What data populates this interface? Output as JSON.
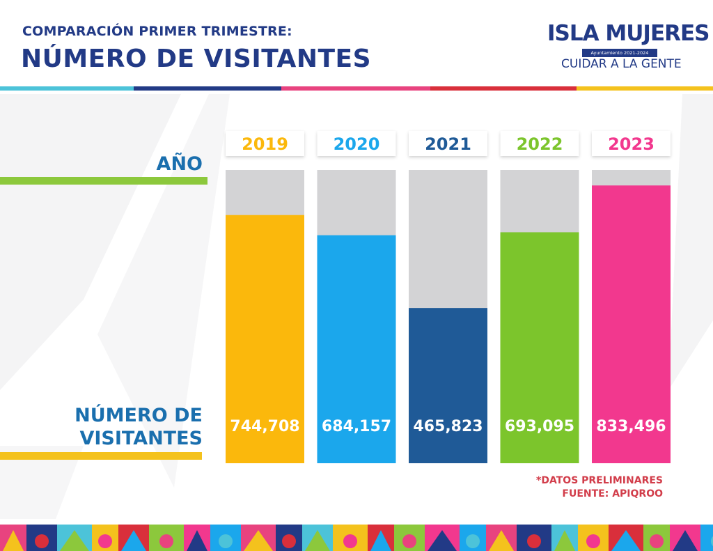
{
  "header": {
    "subtitle": "COMPARACIÓN PRIMER TRIMESTRE:",
    "title": "NÚMERO DE VISITANTES"
  },
  "logo": {
    "name": "ISLA MUJERES",
    "sub": "Ayuntamiento 2021-2024",
    "tagline": "CUIDAR A LA GENTE"
  },
  "colors": {
    "navy": "#223a86",
    "accent_blue": "#1a6fae",
    "lime": "#8cc83c",
    "gold": "#f4c21d",
    "note_red": "#d23d4a"
  },
  "labels": {
    "year_axis": "AÑO",
    "value_axis_line1": "NÚMERO DE",
    "value_axis_line2": "VISITANTES"
  },
  "notes": {
    "preliminary": "*DATOS PRELIMINARES",
    "source": "FUENTE: APIQROO"
  },
  "chart_data": {
    "type": "bar",
    "categories": [
      "2019",
      "2020",
      "2021",
      "2022",
      "2023"
    ],
    "values": [
      744708,
      684157,
      465823,
      693095,
      833496
    ],
    "value_labels": [
      "744,708",
      "684,157",
      "465,823",
      "693,095",
      "833,496"
    ],
    "ylim": [
      0,
      880000
    ],
    "colors": [
      "#fbb80c",
      "#1ba7ec",
      "#1f5a97",
      "#7cc52c",
      "#f2388e"
    ],
    "grid": false,
    "title": "NÚMERO DE VISITANTES",
    "xlabel": "AÑO",
    "ylabel": "NÚMERO DE VISITANTES"
  }
}
